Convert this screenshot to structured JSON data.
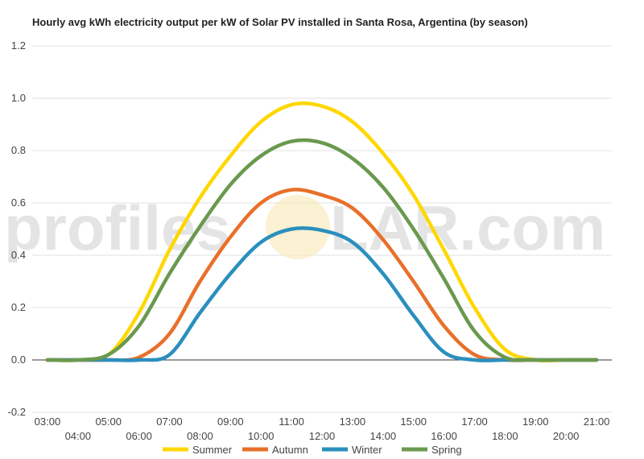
{
  "watermark": {
    "brand": "profileSOLAR.com",
    "part1": "profiles",
    "part2": "LAR.com"
  },
  "chart_data": {
    "type": "line",
    "title": "Hourly avg kWh electricity output per kW of Solar PV installed in Santa Rosa, Argentina (by season)",
    "xlabel": "",
    "ylabel": "",
    "ylim": [
      -0.2,
      1.2
    ],
    "yticks": [
      "-0.2",
      "0.0",
      "0.2",
      "0.4",
      "0.6",
      "0.8",
      "1.0",
      "1.2"
    ],
    "yvals": [
      -0.2,
      0.0,
      0.2,
      0.4,
      0.6,
      0.8,
      1.0,
      1.2
    ],
    "xticks": [
      "03:00",
      "04:00",
      "05:00",
      "06:00",
      "07:00",
      "08:00",
      "09:00",
      "10:00",
      "11:00",
      "12:00",
      "13:00",
      "14:00",
      "15:00",
      "16:00",
      "17:00",
      "18:00",
      "19:00",
      "20:00",
      "21:00"
    ],
    "grid": true,
    "legend": "bottom",
    "series": [
      {
        "name": "Summer",
        "color": "#FFD700",
        "values": [
          0,
          0,
          0.02,
          0.18,
          0.42,
          0.62,
          0.78,
          0.91,
          0.975,
          0.97,
          0.91,
          0.79,
          0.63,
          0.42,
          0.2,
          0.04,
          0,
          0,
          0
        ]
      },
      {
        "name": "Autumn",
        "color": "#E8702A",
        "values": [
          0,
          0,
          0,
          0.01,
          0.1,
          0.3,
          0.47,
          0.6,
          0.65,
          0.63,
          0.58,
          0.46,
          0.3,
          0.13,
          0.02,
          0,
          0,
          0,
          0
        ]
      },
      {
        "name": "Winter",
        "color": "#2A8FBD",
        "values": [
          0,
          0,
          0,
          0,
          0.02,
          0.18,
          0.33,
          0.45,
          0.5,
          0.495,
          0.45,
          0.33,
          0.17,
          0.03,
          0,
          0,
          0,
          0,
          0
        ]
      },
      {
        "name": "Spring",
        "color": "#6A994E",
        "values": [
          0,
          0,
          0.02,
          0.13,
          0.33,
          0.51,
          0.67,
          0.78,
          0.835,
          0.83,
          0.77,
          0.66,
          0.5,
          0.31,
          0.11,
          0.01,
          0,
          0,
          0
        ]
      }
    ]
  }
}
